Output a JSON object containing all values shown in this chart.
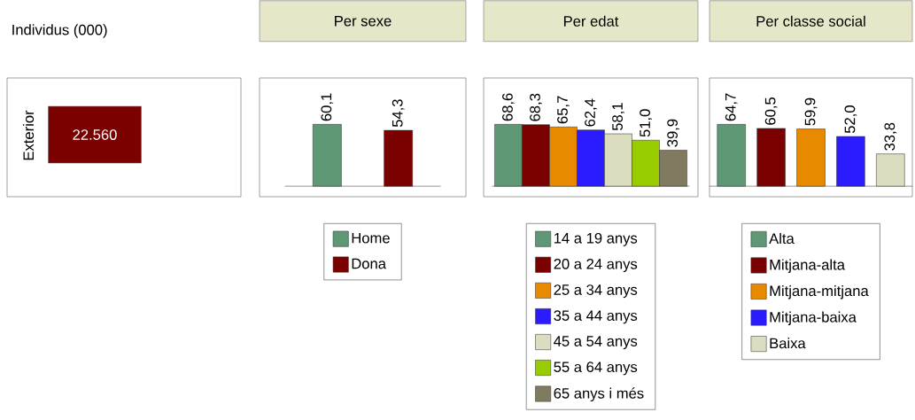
{
  "chart_data": [
    {
      "type": "other",
      "title": "Individus (000)",
      "ylabel": "Exterior",
      "annotations": [
        "22.560"
      ],
      "colors": [
        "#7b0000"
      ]
    },
    {
      "type": "bar",
      "title": "Per sexe",
      "categories": [
        null,
        null
      ],
      "stacked": true,
      "legend": "bottom",
      "tick_labels": false,
      "series": [
        {
          "name": "Home",
          "color": "#5f9874",
          "values": [
            60.1,
            null
          ],
          "value_labels": [
            "60,1",
            null
          ]
        },
        {
          "name": "Dona",
          "color": "#7b0000",
          "values": [
            null,
            54.3
          ],
          "value_labels": [
            null,
            "54,3"
          ]
        }
      ]
    },
    {
      "type": "bar",
      "title": "Per edat",
      "categories": [
        null,
        null,
        null,
        null,
        null,
        null,
        null
      ],
      "stacked": true,
      "legend": "bottom",
      "tick_labels": false,
      "series": [
        {
          "name": "14 a 19 anys",
          "color": "#5f9874",
          "values": [
            68.6,
            null,
            null,
            null,
            null,
            null,
            null
          ],
          "value_labels": [
            "68,6",
            null,
            null,
            null,
            null,
            null,
            null
          ]
        },
        {
          "name": "20 a 24 anys",
          "color": "#7b0000",
          "values": [
            null,
            68.3,
            null,
            null,
            null,
            null,
            null
          ],
          "value_labels": [
            null,
            "68,3",
            null,
            null,
            null,
            null,
            null
          ]
        },
        {
          "name": "25 a 34 anys",
          "color": "#e88a00",
          "values": [
            null,
            null,
            65.7,
            null,
            null,
            null,
            null
          ],
          "value_labels": [
            null,
            null,
            "65,7",
            null,
            null,
            null,
            null
          ]
        },
        {
          "name": "35 a 44 anys",
          "color": "#2a1cff",
          "values": [
            null,
            null,
            null,
            62.4,
            null,
            null,
            null
          ],
          "value_labels": [
            null,
            null,
            null,
            "62,4",
            null,
            null,
            null
          ]
        },
        {
          "name": "45 a 54 anys",
          "color": "#dcdcc0",
          "values": [
            null,
            null,
            null,
            null,
            58.1,
            null,
            null
          ],
          "value_labels": [
            null,
            null,
            null,
            null,
            "58,1",
            null,
            null
          ]
        },
        {
          "name": "55 a 64 anys",
          "color": "#99cc00",
          "values": [
            null,
            null,
            null,
            null,
            null,
            51.0,
            null
          ],
          "value_labels": [
            null,
            null,
            null,
            null,
            null,
            "51,0",
            null
          ]
        },
        {
          "name": "65 anys i més",
          "color": "#807a60",
          "values": [
            null,
            null,
            null,
            null,
            null,
            null,
            39.9
          ],
          "value_labels": [
            null,
            null,
            null,
            null,
            null,
            null,
            "39,9"
          ]
        }
      ]
    },
    {
      "type": "bar",
      "title": "Per classe social",
      "categories": [
        null,
        null,
        null,
        null,
        null
      ],
      "stacked": true,
      "legend": "bottom",
      "tick_labels": false,
      "series": [
        {
          "name": "Alta",
          "color": "#5f9874",
          "values": [
            64.7,
            null,
            null,
            null,
            null
          ],
          "value_labels": [
            "64,7",
            null,
            null,
            null,
            null
          ]
        },
        {
          "name": "Mitjana-alta",
          "color": "#7b0000",
          "values": [
            null,
            60.5,
            null,
            null,
            null
          ],
          "value_labels": [
            null,
            "60,5",
            null,
            null,
            null
          ]
        },
        {
          "name": "Mitjana-mitjana",
          "color": "#e88a00",
          "values": [
            null,
            null,
            59.9,
            null,
            null
          ],
          "value_labels": [
            null,
            null,
            "59,9",
            null,
            null
          ]
        },
        {
          "name": "Mitjana-baixa",
          "color": "#2a1cff",
          "values": [
            null,
            null,
            null,
            52.0,
            null
          ],
          "value_labels": [
            null,
            null,
            null,
            "52,0",
            null
          ]
        },
        {
          "name": "Baixa",
          "color": "#dcdcc0",
          "values": [
            null,
            null,
            null,
            null,
            33.8
          ],
          "value_labels": [
            null,
            null,
            null,
            null,
            "33,8"
          ]
        }
      ]
    }
  ]
}
